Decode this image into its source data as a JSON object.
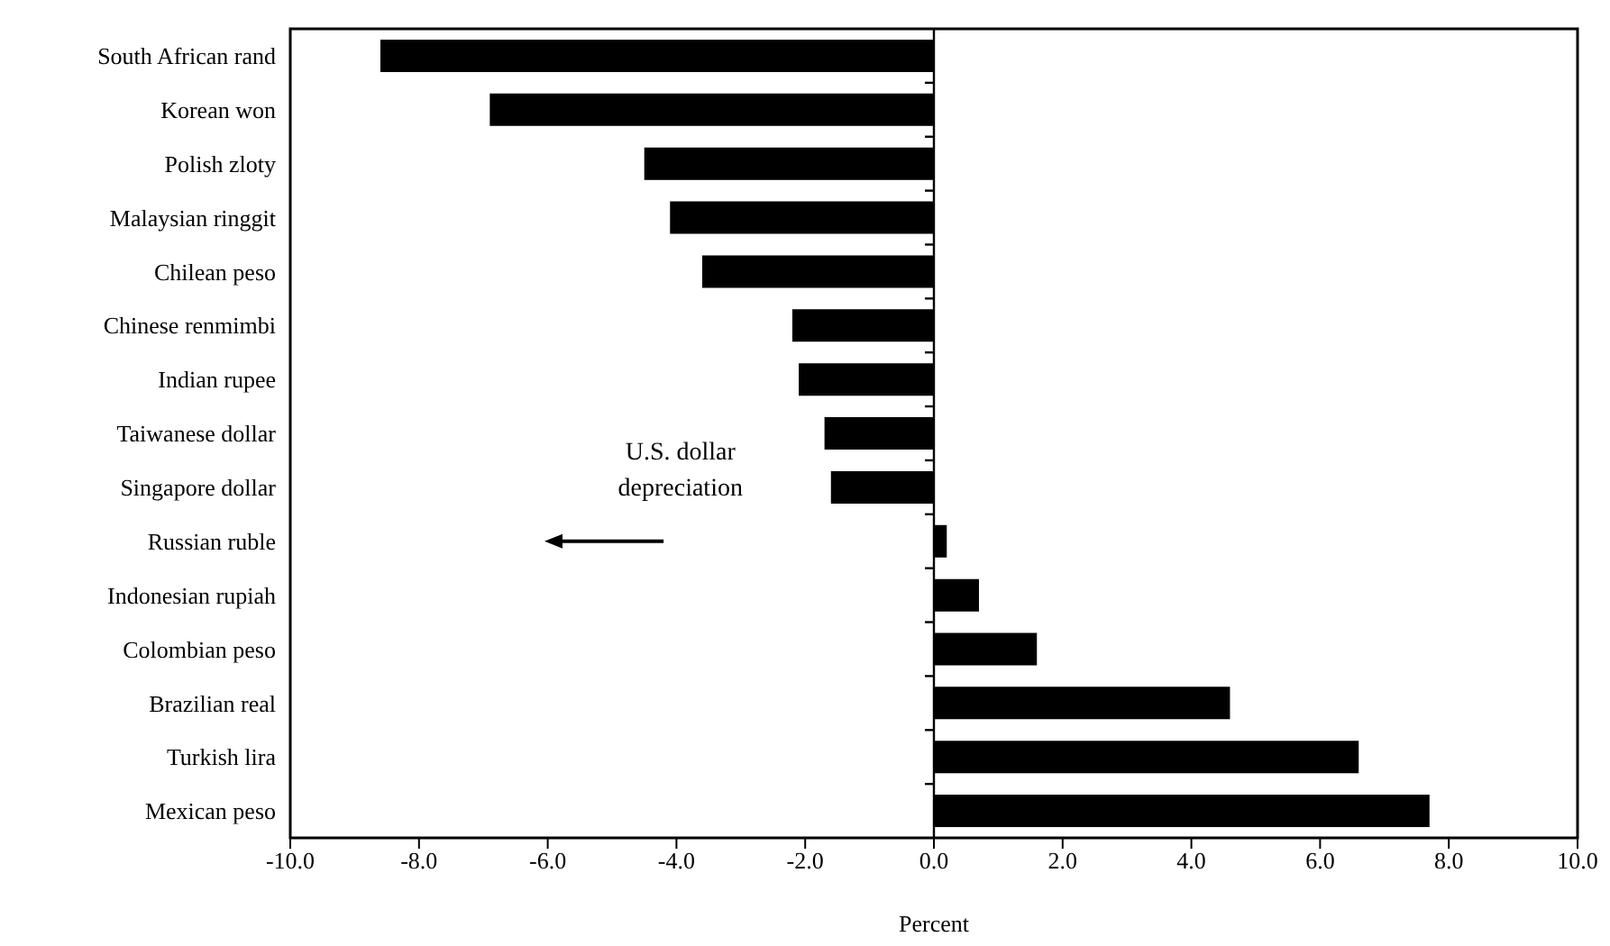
{
  "chart_data": {
    "type": "bar",
    "orientation": "horizontal",
    "xlabel": "Percent",
    "categories": [
      "South African rand",
      "Korean won",
      "Polish zloty",
      "Malaysian ringgit",
      "Chilean peso",
      "Chinese renmimbi",
      "Indian rupee",
      "Taiwanese dollar",
      "Singapore dollar",
      "Russian ruble",
      "Indonesian rupiah",
      "Colombian peso",
      "Brazilian real",
      "Turkish lira",
      "Mexican peso"
    ],
    "values": [
      -8.6,
      -6.9,
      -4.5,
      -4.1,
      -3.6,
      -2.2,
      -2.1,
      -1.7,
      -1.6,
      0.2,
      0.7,
      1.6,
      4.6,
      6.6,
      7.7
    ],
    "color": "#000000",
    "xlim": [
      -10,
      10
    ],
    "xticks": [
      {
        "value": -10,
        "label": "-10.0"
      },
      {
        "value": -8,
        "label": "-8.0"
      },
      {
        "value": -6,
        "label": "-6.0"
      },
      {
        "value": -4,
        "label": "-4.0"
      },
      {
        "value": -2,
        "label": "-2.0"
      },
      {
        "value": 0,
        "label": "0.0"
      },
      {
        "value": 2,
        "label": "2.0"
      },
      {
        "value": 4,
        "label": "4.0"
      },
      {
        "value": 6,
        "label": "6.0"
      },
      {
        "value": 8,
        "label": "8.0"
      },
      {
        "value": 10,
        "label": "10.0"
      }
    ],
    "annotations": [
      "U.S. dollar depreciation"
    ]
  }
}
